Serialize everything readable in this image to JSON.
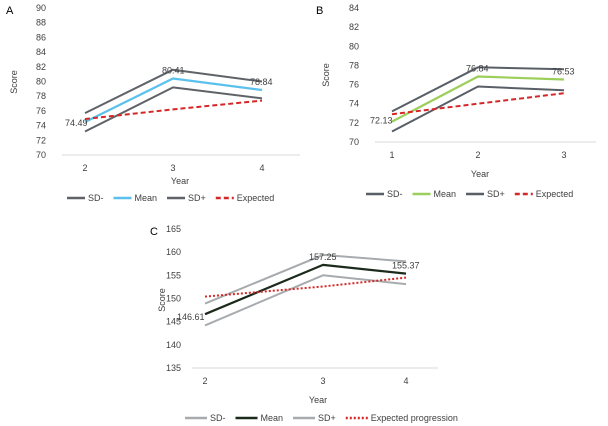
{
  "chart_data": [
    {
      "id": "A",
      "type": "line",
      "panel_label": "A",
      "x": [
        2,
        3,
        4
      ],
      "categories": [
        "2",
        "3",
        "4"
      ],
      "xlabel": "Year",
      "ylabel": "Score",
      "ylim": [
        70,
        90
      ],
      "yticks": [
        70,
        72,
        74,
        76,
        78,
        80,
        82,
        84,
        86,
        88,
        90
      ],
      "series": [
        {
          "name": "SD-",
          "values": [
            75.7,
            81.6,
            80.0
          ],
          "color": "#5f6368",
          "style": "solid"
        },
        {
          "name": "Mean",
          "values": [
            74.49,
            80.41,
            78.84
          ],
          "color": "#5bc0eb",
          "style": "solid"
        },
        {
          "name": "SD+",
          "values": [
            73.2,
            79.2,
            77.7
          ],
          "color": "#5f6368",
          "style": "solid"
        },
        {
          "name": "Expected",
          "values": [
            74.9,
            76.2,
            77.4
          ],
          "color": "#d62728",
          "style": "dashed"
        }
      ],
      "data_labels": [
        {
          "text": "74.49",
          "xi": 0,
          "value": 74.49
        },
        {
          "text": "80.41",
          "xi": 1,
          "value": 80.41
        },
        {
          "text": "78.84",
          "xi": 2,
          "value": 78.84
        }
      ],
      "legend": [
        "SD-",
        "Mean",
        "SD+",
        "Expected"
      ]
    },
    {
      "id": "B",
      "type": "line",
      "panel_label": "B",
      "x": [
        1,
        2,
        3
      ],
      "categories": [
        "1",
        "2",
        "3"
      ],
      "xlabel": "Year",
      "ylabel": "Score",
      "ylim": [
        70,
        84
      ],
      "yticks": [
        70,
        72,
        74,
        76,
        78,
        80,
        82,
        84
      ],
      "series": [
        {
          "name": "SD-",
          "values": [
            73.2,
            77.8,
            77.6
          ],
          "color": "#595f66",
          "style": "solid"
        },
        {
          "name": "Mean",
          "values": [
            72.13,
            76.84,
            76.53
          ],
          "color": "#9bcf5a",
          "style": "solid"
        },
        {
          "name": "SD+",
          "values": [
            71.1,
            75.8,
            75.4
          ],
          "color": "#595f66",
          "style": "solid"
        },
        {
          "name": "Expected",
          "values": [
            72.9,
            74.0,
            75.1
          ],
          "color": "#d62728",
          "style": "dashed"
        }
      ],
      "data_labels": [
        {
          "text": "72.13",
          "xi": 0,
          "value": 72.13
        },
        {
          "text": "76.84",
          "xi": 1,
          "value": 76.84
        },
        {
          "text": "76.53",
          "xi": 2,
          "value": 76.53
        }
      ],
      "legend": [
        "SD-",
        "Mean",
        "SD+",
        "Expected"
      ]
    },
    {
      "id": "C",
      "type": "line",
      "panel_label": "C",
      "x": [
        2,
        3,
        4
      ],
      "categories": [
        "2",
        "3",
        "4"
      ],
      "xlabel": "Year",
      "ylabel": "Score",
      "ylim": [
        135,
        165
      ],
      "yticks": [
        135,
        140,
        145,
        150,
        155,
        160,
        165
      ],
      "series": [
        {
          "name": "SD-",
          "values": [
            148.9,
            159.4,
            158.0
          ],
          "color": "#a8abae",
          "style": "solid"
        },
        {
          "name": "Mean",
          "values": [
            146.61,
            157.25,
            155.37
          ],
          "color": "#1b2a1b",
          "style": "solid"
        },
        {
          "name": "SD+",
          "values": [
            144.2,
            155.0,
            153.1
          ],
          "color": "#a8abae",
          "style": "solid"
        },
        {
          "name": "Expected progression",
          "values": [
            150.4,
            152.6,
            154.5
          ],
          "color": "#d62728",
          "style": "dotted"
        }
      ],
      "data_labels": [
        {
          "text": "146.61",
          "xi": 0,
          "value": 146.61
        },
        {
          "text": "157.25",
          "xi": 1,
          "value": 157.25
        },
        {
          "text": "155.37",
          "xi": 2,
          "value": 155.37
        }
      ],
      "legend": [
        "SD-",
        "Mean",
        "SD+",
        "Expected progression"
      ]
    }
  ]
}
